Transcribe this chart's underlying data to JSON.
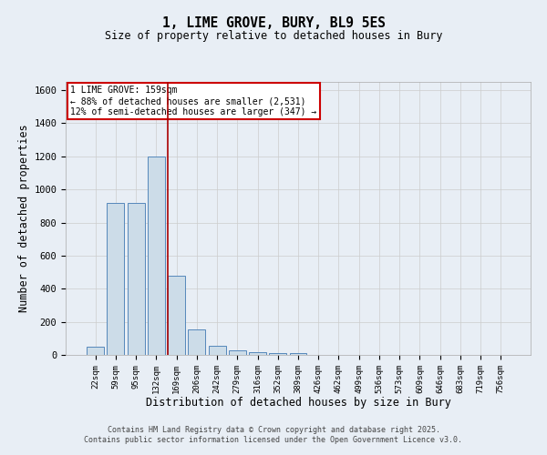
{
  "title": "1, LIME GROVE, BURY, BL9 5ES",
  "subtitle": "Size of property relative to detached houses in Bury",
  "xlabel": "Distribution of detached houses by size in Bury",
  "ylabel": "Number of detached properties",
  "bar_labels": [
    "22sqm",
    "59sqm",
    "95sqm",
    "132sqm",
    "169sqm",
    "206sqm",
    "242sqm",
    "279sqm",
    "316sqm",
    "352sqm",
    "389sqm",
    "426sqm",
    "462sqm",
    "499sqm",
    "536sqm",
    "573sqm",
    "609sqm",
    "646sqm",
    "683sqm",
    "719sqm",
    "756sqm"
  ],
  "bar_values": [
    50,
    920,
    920,
    1200,
    480,
    155,
    55,
    30,
    15,
    10,
    10,
    0,
    0,
    0,
    0,
    0,
    0,
    0,
    0,
    0,
    0
  ],
  "bar_color": "#ccdce8",
  "bar_edge_color": "#5588bb",
  "grid_color": "#cccccc",
  "bg_color": "#e8eef5",
  "vline_color": "#aa0000",
  "vline_pos": 3.57,
  "annotation_text": "1 LIME GROVE: 159sqm\n← 88% of detached houses are smaller (2,531)\n12% of semi-detached houses are larger (347) →",
  "annotation_box_facecolor": "#ffffff",
  "annotation_border_color": "#cc0000",
  "ylim": [
    0,
    1650
  ],
  "yticks": [
    0,
    200,
    400,
    600,
    800,
    1000,
    1200,
    1400,
    1600
  ],
  "footer_line1": "Contains HM Land Registry data © Crown copyright and database right 2025.",
  "footer_line2": "Contains public sector information licensed under the Open Government Licence v3.0."
}
